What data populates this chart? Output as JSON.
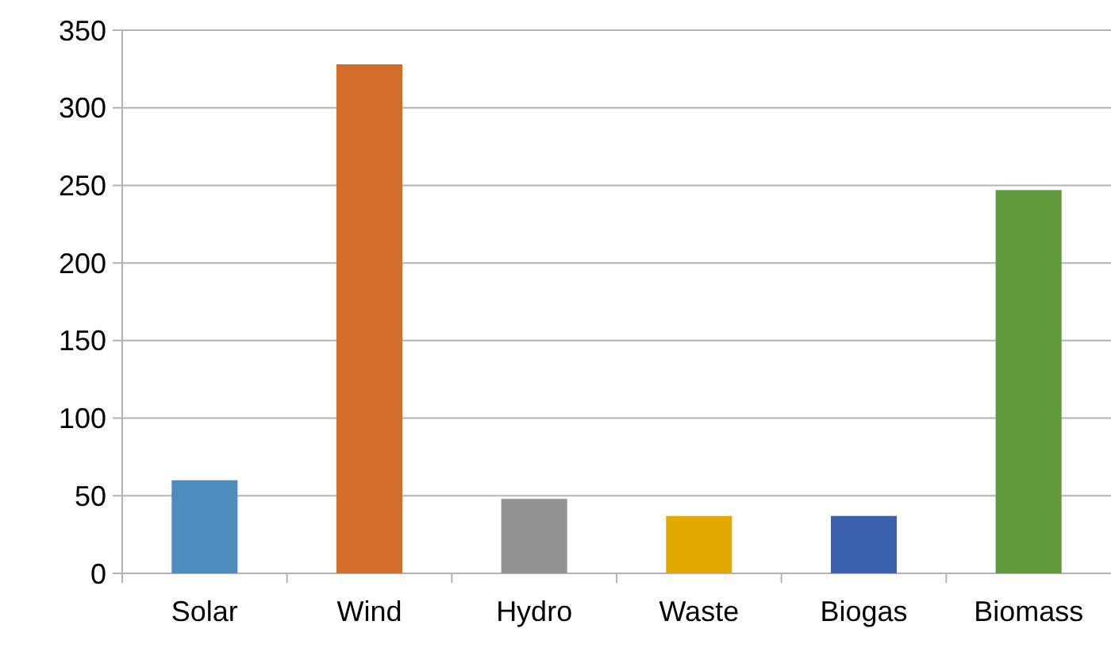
{
  "chart_data": {
    "type": "bar",
    "categories": [
      "Solar",
      "Wind",
      "Hydro",
      "Waste",
      "Biogas",
      "Biomass"
    ],
    "values": [
      60,
      328,
      48,
      37,
      37,
      247
    ],
    "colors": [
      "#4e8bbf",
      "#d26d2b",
      "#939393",
      "#e2a900",
      "#3c62ad",
      "#5f9a3d"
    ],
    "ylim": [
      0,
      350
    ],
    "yticks": [
      0,
      50,
      100,
      150,
      200,
      250,
      300,
      350
    ],
    "grid": "y"
  }
}
